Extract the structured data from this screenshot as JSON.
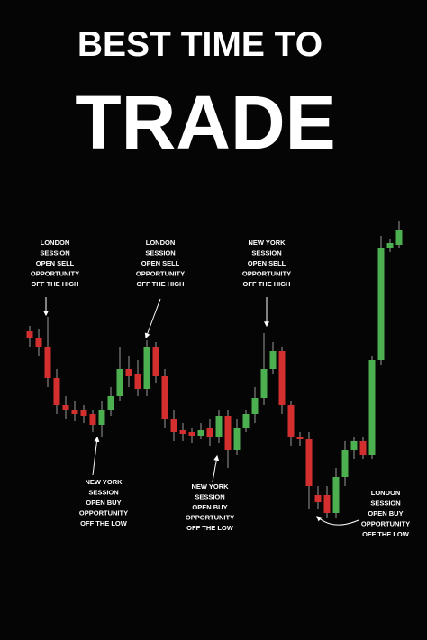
{
  "title": "BEST TIME TO",
  "subtitle": "TRADE",
  "chart_data": {
    "type": "candlestick",
    "ylim": [
      0,
      400
    ],
    "up_color": "#4caf50",
    "down_color": "#d32f2f",
    "open": [
      232,
      225,
      215,
      180,
      150,
      145,
      144,
      140,
      128,
      145,
      160,
      190,
      185,
      168,
      215,
      182,
      135,
      122,
      120,
      116,
      124,
      115,
      138,
      100,
      125,
      140,
      158,
      190,
      210,
      150,
      115,
      112,
      50,
      50,
      30,
      70,
      100,
      110,
      95,
      200,
      325,
      328
    ],
    "high": [
      238,
      235,
      248,
      190,
      160,
      155,
      150,
      145,
      155,
      170,
      215,
      205,
      200,
      222,
      220,
      190,
      145,
      130,
      125,
      130,
      135,
      145,
      145,
      135,
      145,
      170,
      230,
      220,
      215,
      155,
      120,
      120,
      60,
      60,
      80,
      110,
      115,
      115,
      205,
      338,
      335,
      355
    ],
    "low": [
      215,
      205,
      170,
      140,
      135,
      132,
      130,
      120,
      115,
      138,
      155,
      170,
      160,
      160,
      175,
      125,
      110,
      110,
      108,
      112,
      105,
      108,
      80,
      95,
      120,
      130,
      150,
      185,
      140,
      105,
      105,
      35,
      35,
      25,
      25,
      60,
      90,
      90,
      90,
      195,
      320,
      325
    ],
    "close": [
      225,
      215,
      180,
      150,
      145,
      140,
      138,
      128,
      145,
      160,
      190,
      182,
      168,
      215,
      182,
      135,
      120,
      118,
      116,
      122,
      115,
      138,
      100,
      125,
      140,
      158,
      190,
      210,
      150,
      115,
      112,
      60,
      42,
      30,
      70,
      100,
      110,
      95,
      200,
      325,
      330,
      345
    ]
  },
  "annotations": [
    {
      "lines": [
        "LONDON",
        "SESSION",
        "OPEN SELL",
        "OPPORTUNITY",
        "OFF THE HIGH"
      ]
    },
    {
      "lines": [
        "LONDON",
        "SESSION",
        "OPEN SELL",
        "OPPORTUNITY",
        "OFF THE HIGH"
      ]
    },
    {
      "lines": [
        "NEW YORK",
        "SESSION",
        "OPEN SELL",
        "OPPORTUNITY",
        "OFF THE HIGH"
      ]
    },
    {
      "lines": [
        "NEW YORK",
        "SESSION",
        "OPEN BUY",
        "OPPORTUNITY",
        "OFF THE LOW"
      ]
    },
    {
      "lines": [
        "NEW YORK",
        "SESSION",
        "OPEN BUY",
        "OPPORTUNITY",
        "OFF THE LOW"
      ]
    },
    {
      "lines": [
        "LONDON",
        "SESSION",
        "OPEN BUY",
        "OPPORTUNITY",
        "OFF THE LOW"
      ]
    }
  ]
}
